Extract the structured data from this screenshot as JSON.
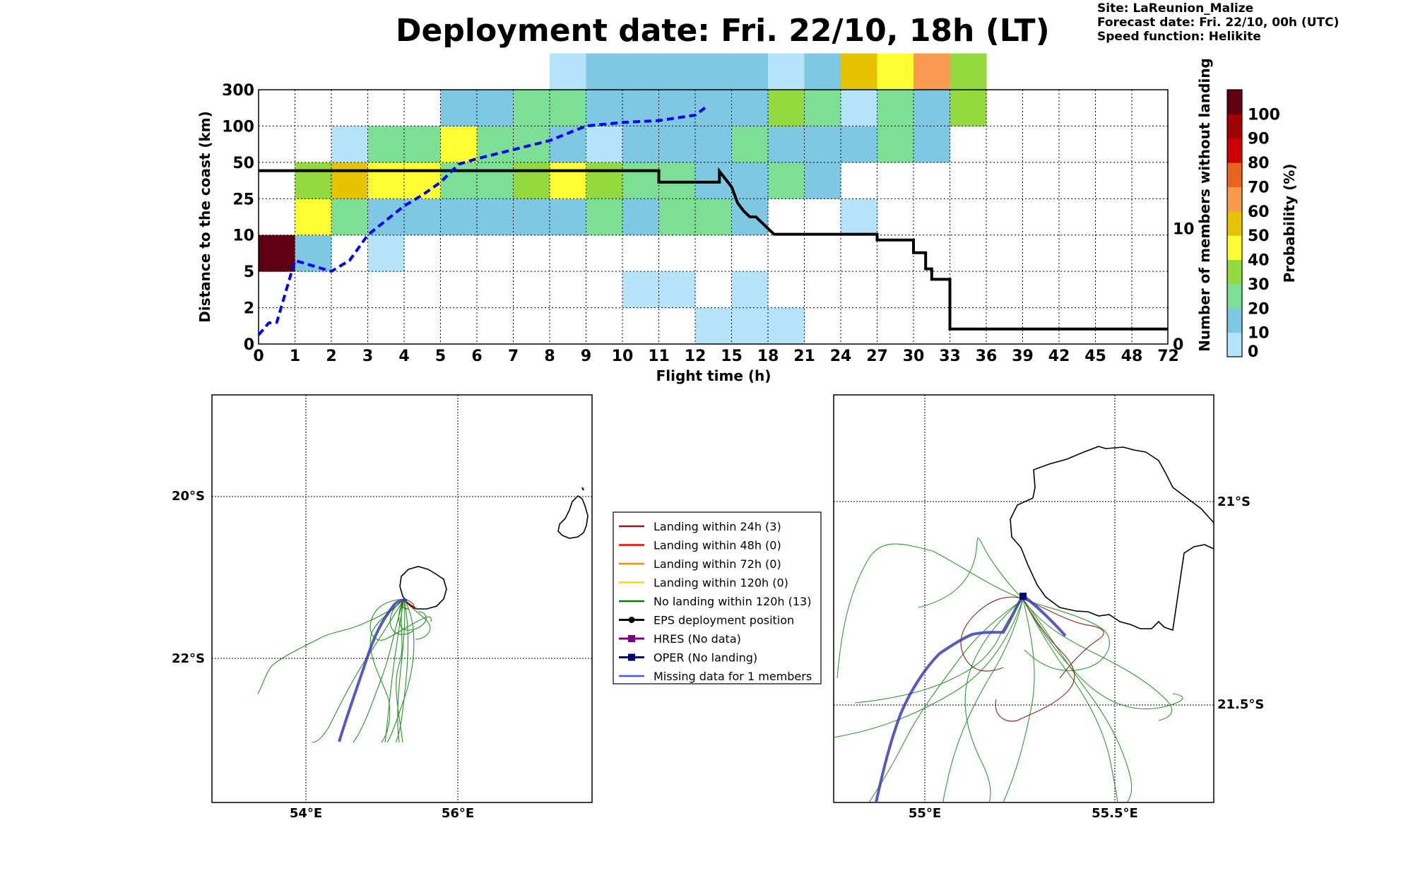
{
  "page": {
    "title": "Deployment date: Fri. 22/10, 18h (LT)",
    "site": "Site: LaReunion_Malize",
    "forecast": "Forecast date: Fri. 22/10, 00h (UTC)",
    "speed": "Speed function: Helikite"
  },
  "chart_data": [
    {
      "type": "heatmap",
      "xlabel": "Flight time (h)",
      "ylabel": "Distance to the coast (km)",
      "y2label": "Number of members without landing",
      "colorbar_label": "Probability (%)",
      "x_ticks": [
        "0",
        "1",
        "2",
        "3",
        "4",
        "5",
        "6",
        "7",
        "8",
        "9",
        "10",
        "11",
        "12",
        "15",
        "18",
        "21",
        "24",
        "27",
        "30",
        "33",
        "36",
        "39",
        "42",
        "45",
        "48",
        "72"
      ],
      "y_ticks": [
        "0",
        "2",
        "5",
        "10",
        "25",
        "50",
        "100",
        "300"
      ],
      "y2_ticks": [
        {
          "label": "0",
          "value": 0
        },
        {
          "label": "10",
          "value": 10
        }
      ],
      "colorbar_ticks": [
        "0",
        "10",
        "20",
        "30",
        "40",
        "50",
        "60",
        "70",
        "80",
        "90",
        "100"
      ],
      "colorbar_colors": [
        "#b5e4fa",
        "#7ec8e3",
        "#7ddf95",
        "#95d940",
        "#ffff33",
        "#e6c300",
        "#fa9950",
        "#e8641e",
        "#cc0000",
        "#a00000",
        "#600010"
      ],
      "cells": [
        {
          "x": 0,
          "y": 2,
          "c": 10
        },
        {
          "x": 1,
          "y": 2,
          "c": 1
        },
        {
          "x": 1,
          "y": 3,
          "c": 4
        },
        {
          "x": 1,
          "y": 4,
          "c": 3
        },
        {
          "x": 2,
          "y": 3,
          "c": 2
        },
        {
          "x": 2,
          "y": 4,
          "c": 5
        },
        {
          "x": 2,
          "y": 5,
          "c": 0
        },
        {
          "x": 3,
          "y": 2,
          "c": 0
        },
        {
          "x": 3,
          "y": 3,
          "c": 1
        },
        {
          "x": 3,
          "y": 4,
          "c": 4
        },
        {
          "x": 3,
          "y": 5,
          "c": 2
        },
        {
          "x": 4,
          "y": 3,
          "c": 1
        },
        {
          "x": 4,
          "y": 4,
          "c": 4
        },
        {
          "x": 4,
          "y": 5,
          "c": 2
        },
        {
          "x": 5,
          "y": 3,
          "c": 1
        },
        {
          "x": 5,
          "y": 4,
          "c": 2
        },
        {
          "x": 5,
          "y": 5,
          "c": 4
        },
        {
          "x": 5,
          "y": 6,
          "c": 1
        },
        {
          "x": 6,
          "y": 3,
          "c": 1
        },
        {
          "x": 6,
          "y": 4,
          "c": 2
        },
        {
          "x": 6,
          "y": 5,
          "c": 2
        },
        {
          "x": 6,
          "y": 6,
          "c": 1
        },
        {
          "x": 7,
          "y": 3,
          "c": 1
        },
        {
          "x": 7,
          "y": 4,
          "c": 3
        },
        {
          "x": 7,
          "y": 5,
          "c": 2
        },
        {
          "x": 7,
          "y": 6,
          "c": 2
        },
        {
          "x": 8,
          "y": 3,
          "c": 1
        },
        {
          "x": 8,
          "y": 4,
          "c": 4
        },
        {
          "x": 8,
          "y": 5,
          "c": 1
        },
        {
          "x": 8,
          "y": 6,
          "c": 2
        },
        {
          "x": 8,
          "y": 7,
          "c": 0
        },
        {
          "x": 9,
          "y": 3,
          "c": 2
        },
        {
          "x": 9,
          "y": 4,
          "c": 3
        },
        {
          "x": 9,
          "y": 5,
          "c": 0
        },
        {
          "x": 9,
          "y": 6,
          "c": 1
        },
        {
          "x": 9,
          "y": 7,
          "c": 1
        },
        {
          "x": 10,
          "y": 1,
          "c": 0
        },
        {
          "x": 10,
          "y": 3,
          "c": 1
        },
        {
          "x": 10,
          "y": 4,
          "c": 2
        },
        {
          "x": 10,
          "y": 5,
          "c": 1
        },
        {
          "x": 10,
          "y": 6,
          "c": 1
        },
        {
          "x": 10,
          "y": 7,
          "c": 1
        },
        {
          "x": 11,
          "y": 1,
          "c": 0
        },
        {
          "x": 11,
          "y": 3,
          "c": 2
        },
        {
          "x": 11,
          "y": 4,
          "c": 2
        },
        {
          "x": 11,
          "y": 5,
          "c": 1
        },
        {
          "x": 11,
          "y": 6,
          "c": 1
        },
        {
          "x": 11,
          "y": 7,
          "c": 1
        },
        {
          "x": 12,
          "y": 0,
          "c": 0
        },
        {
          "x": 12,
          "y": 3,
          "c": 2
        },
        {
          "x": 12,
          "y": 4,
          "c": 1
        },
        {
          "x": 12,
          "y": 5,
          "c": 1
        },
        {
          "x": 12,
          "y": 6,
          "c": 1
        },
        {
          "x": 12,
          "y": 7,
          "c": 1
        },
        {
          "x": 13,
          "y": 0,
          "c": 0
        },
        {
          "x": 13,
          "y": 1,
          "c": 0
        },
        {
          "x": 13,
          "y": 3,
          "c": 1
        },
        {
          "x": 13,
          "y": 4,
          "c": 1
        },
        {
          "x": 13,
          "y": 5,
          "c": 2
        },
        {
          "x": 13,
          "y": 6,
          "c": 1
        },
        {
          "x": 13,
          "y": 7,
          "c": 1
        },
        {
          "x": 14,
          "y": 0,
          "c": 0
        },
        {
          "x": 14,
          "y": 4,
          "c": 2
        },
        {
          "x": 14,
          "y": 5,
          "c": 1
        },
        {
          "x": 14,
          "y": 6,
          "c": 3
        },
        {
          "x": 14,
          "y": 7,
          "c": 0
        },
        {
          "x": 15,
          "y": 4,
          "c": 1
        },
        {
          "x": 15,
          "y": 5,
          "c": 1
        },
        {
          "x": 15,
          "y": 6,
          "c": 2
        },
        {
          "x": 15,
          "y": 7,
          "c": 1
        },
        {
          "x": 16,
          "y": 3,
          "c": 0
        },
        {
          "x": 16,
          "y": 5,
          "c": 1
        },
        {
          "x": 16,
          "y": 6,
          "c": 0
        },
        {
          "x": 16,
          "y": 7,
          "c": 5
        },
        {
          "x": 17,
          "y": 5,
          "c": 2
        },
        {
          "x": 17,
          "y": 6,
          "c": 2
        },
        {
          "x": 17,
          "y": 7,
          "c": 4
        },
        {
          "x": 18,
          "y": 5,
          "c": 1
        },
        {
          "x": 18,
          "y": 6,
          "c": 1
        },
        {
          "x": 18,
          "y": 7,
          "c": 6
        },
        {
          "x": 19,
          "y": 6,
          "c": 3
        },
        {
          "x": 19,
          "y": 7,
          "c": 3
        }
      ],
      "series": [
        {
          "name": "",
          "style": "solid-black-step",
          "points": [
            [
              0,
              0.25
            ],
            [
              0.28,
              0.58
            ],
            [
              0.5,
              0.6
            ],
            [
              1,
              2.3
            ],
            [
              1.5,
              2.15
            ],
            [
              2,
              2.0
            ],
            [
              2.5,
              2.3
            ],
            [
              3,
              3.0
            ],
            [
              3.5,
              3.4
            ],
            [
              4,
              3.8
            ],
            [
              4.5,
              4.1
            ],
            [
              5,
              4.45
            ],
            [
              5.5,
              4.95
            ],
            [
              6,
              5.1
            ],
            [
              7,
              5.35
            ],
            [
              8,
              5.6
            ],
            [
              9,
              6.0
            ],
            [
              10,
              6.1
            ],
            [
              11,
              6.15
            ],
            [
              12,
              6.3
            ],
            [
              13,
              6.55
            ]
          ]
        },
        {
          "name": "",
          "style": "step",
          "steps": [
            [
              0,
              15
            ],
            [
              11,
              15
            ],
            [
              11,
              14
            ],
            [
              14,
              14
            ],
            [
              14,
              14.95
            ],
            [
              15,
              13.6
            ],
            [
              15.5,
              12.2
            ],
            [
              16,
              11.5
            ],
            [
              16.5,
              11.0
            ],
            [
              17,
              11.0
            ],
            [
              17.5,
              10.5
            ],
            [
              18,
              10.0
            ],
            [
              18.5,
              9.5
            ],
            [
              19,
              9.5
            ],
            [
              27,
              9.5
            ],
            [
              27,
              9.0
            ],
            [
              30,
              9.0
            ],
            [
              30,
              7.9
            ],
            [
              31,
              7.9
            ],
            [
              31,
              6.5
            ],
            [
              31.5,
              6.5
            ],
            [
              31.5,
              5.6
            ],
            [
              33,
              5.6
            ],
            [
              33,
              1.3
            ],
            [
              72,
              1.3
            ]
          ]
        }
      ]
    }
  ],
  "legend": [
    {
      "label": "Landing within 24h (3)",
      "color": "#8b1a1a",
      "marker": "none"
    },
    {
      "label": "Landing within 48h (0)",
      "color": "#ff0000",
      "marker": "none"
    },
    {
      "label": "Landing within 72h (0)",
      "color": "#ff8c00",
      "marker": "none"
    },
    {
      "label": "Landing within 120h (0)",
      "color": "#ffd700",
      "marker": "none"
    },
    {
      "label": "No landing within 120h (13)",
      "color": "#008000",
      "marker": "none"
    },
    {
      "label": "EPS deployment position",
      "color": "#000000",
      "marker": "circle"
    },
    {
      "label": "HRES (No data)",
      "color": "#800080",
      "marker": "square"
    },
    {
      "label": "OPER (No landing)",
      "color": "#000080",
      "marker": "square"
    },
    {
      "label": "Missing data for 1 members",
      "color": "#3c5cff",
      "marker": "none"
    }
  ],
  "map_left": {
    "lat_labels": [
      "20°S",
      "22°S"
    ],
    "lon_labels": [
      "54°E",
      "56°E"
    ]
  },
  "map_right": {
    "lat_labels": [
      "21°S",
      "21.5°S"
    ],
    "lon_labels": [
      "55°E",
      "55.5°E"
    ]
  }
}
